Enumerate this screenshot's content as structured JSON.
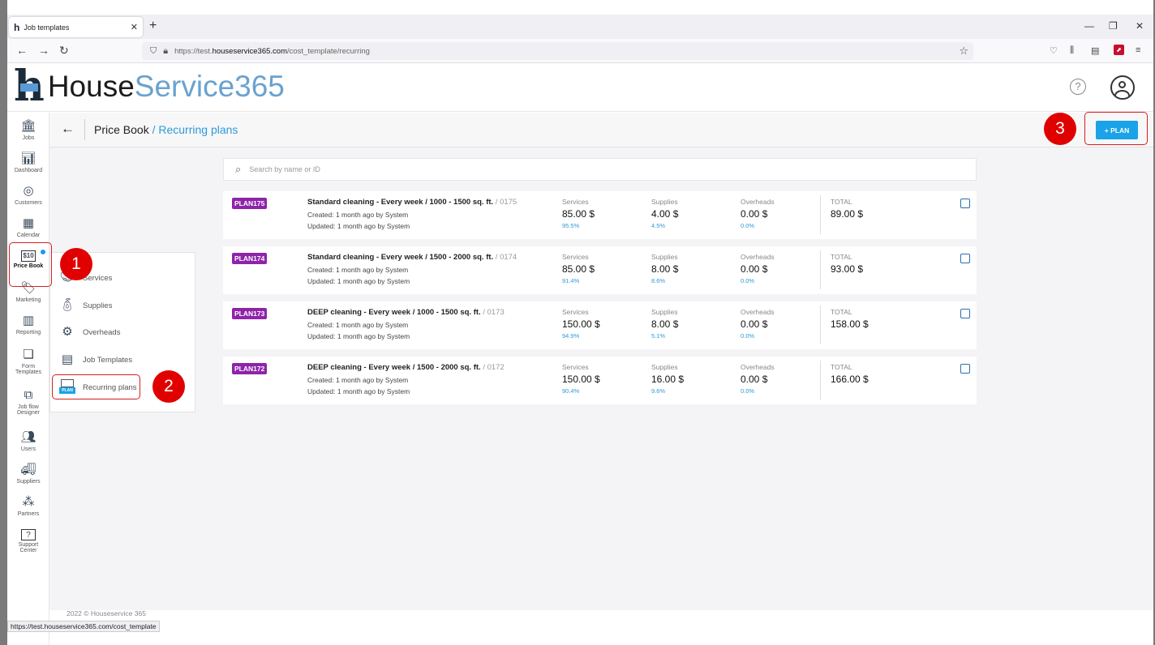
{
  "browser": {
    "tab_title": "Job templates",
    "url_prefix": "https://test.",
    "url_domain": "houseservice365.com",
    "url_path": "/cost_template/recurring",
    "status_url": "https://test.houseservice365.com/cost_template"
  },
  "app": {
    "logo_part1": "House",
    "logo_part2": "Service365",
    "brand_color": "#6aa2cf"
  },
  "rail": [
    {
      "label": "Jobs",
      "icon": "jobs-icon"
    },
    {
      "label": "Dashboard",
      "icon": "dashboard-icon"
    },
    {
      "label": "Customers",
      "icon": "customers-icon"
    },
    {
      "label": "Calendar",
      "icon": "calendar-icon"
    },
    {
      "label": "Price Book",
      "icon": "price-book-icon",
      "active": true
    },
    {
      "label": "Marketing",
      "icon": "marketing-icon"
    },
    {
      "label": "Reporting",
      "icon": "reporting-icon"
    },
    {
      "label": "Form",
      "label2": "Templates",
      "icon": "form-templates-icon"
    },
    {
      "label": "Job flow",
      "label2": "Designer",
      "icon": "job-flow-icon"
    },
    {
      "label": "Users",
      "icon": "users-icon"
    },
    {
      "label": "Suppliers",
      "icon": "suppliers-icon"
    },
    {
      "label": "Partners",
      "icon": "partners-icon"
    },
    {
      "label": "Support",
      "label2": "Center",
      "icon": "support-icon"
    }
  ],
  "breadcrumb": {
    "root": "Price Book",
    "sep": " / ",
    "current": "Recurring plans"
  },
  "plan_button": "+ PLAN",
  "search_placeholder": "Search by name or ID",
  "submenu": [
    {
      "label": "Services"
    },
    {
      "label": "Supplies"
    },
    {
      "label": "Overheads"
    },
    {
      "label": "Job Templates"
    },
    {
      "label": "Recurring plans"
    }
  ],
  "column_labels": {
    "services": "Services",
    "supplies": "Supplies",
    "overheads": "Overheads",
    "total": "TOTAL"
  },
  "plans": [
    {
      "code": "PLAN175",
      "title": "Standard cleaning - Every week / 1000 - 1500 sq. ft.",
      "id": " / 0175",
      "created": "Created: 1 month ago by System",
      "updated": "Updated: 1 month ago by System",
      "services": "85.00 $",
      "services_pct": "95.5%",
      "supplies": "4.00 $",
      "supplies_pct": "4.5%",
      "overheads": "0.00 $",
      "overheads_pct": "0.0%",
      "total": "89.00 $"
    },
    {
      "code": "PLAN174",
      "title": "Standard cleaning - Every week / 1500 - 2000 sq. ft.",
      "id": " / 0174",
      "created": "Created: 1 month ago by System",
      "updated": "Updated: 1 month ago by System",
      "services": "85.00 $",
      "services_pct": "91.4%",
      "supplies": "8.00 $",
      "supplies_pct": "8.6%",
      "overheads": "0.00 $",
      "overheads_pct": "0.0%",
      "total": "93.00 $"
    },
    {
      "code": "PLAN173",
      "title": "DEEP cleaning - Every week / 1000 - 1500 sq. ft.",
      "id": " / 0173",
      "created": "Created: 1 month ago by System",
      "updated": "Updated: 1 month ago by System",
      "services": "150.00 $",
      "services_pct": "94.9%",
      "supplies": "8.00 $",
      "supplies_pct": "5.1%",
      "overheads": "0.00 $",
      "overheads_pct": "0.0%",
      "total": "158.00 $"
    },
    {
      "code": "PLAN172",
      "title": "DEEP cleaning - Every week / 1500 - 2000 sq. ft.",
      "id": " / 0172",
      "created": "Created: 1 month ago by System",
      "updated": "Updated: 1 month ago by System",
      "services": "150.00 $",
      "services_pct": "90.4%",
      "supplies": "16.00 $",
      "supplies_pct": "9.6%",
      "overheads": "0.00 $",
      "overheads_pct": "0.0%",
      "total": "166.00 $"
    }
  ],
  "footer": "2022 © Houseservice 365",
  "annotations": [
    "1",
    "2",
    "3"
  ]
}
